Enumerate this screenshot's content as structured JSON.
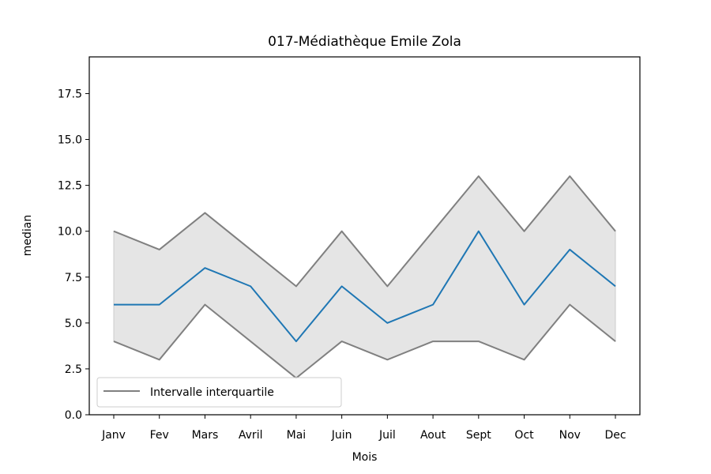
{
  "chart_data": {
    "type": "line",
    "title": "017-Médiathèque Emile Zola",
    "xlabel": "Mois",
    "ylabel": "median",
    "categories": [
      "Janv",
      "Fev",
      "Mars",
      "Avril",
      "Mai",
      "Juin",
      "Juil",
      "Aout",
      "Sept",
      "Oct",
      "Nov",
      "Dec"
    ],
    "ylim": [
      0,
      19.5
    ],
    "yticks": [
      "0.0",
      "2.5",
      "5.0",
      "7.5",
      "10.0",
      "12.5",
      "15.0",
      "17.5"
    ],
    "grid": false,
    "legend_position": "lower-left",
    "series": [
      {
        "values": [
          6,
          6,
          8,
          7,
          4,
          7,
          5,
          6,
          10,
          6,
          9,
          7
        ],
        "color": "#1f77b4"
      },
      {
        "name": "Intervalle interquartile",
        "role": "q3",
        "values": [
          10,
          9,
          11,
          9,
          7,
          10,
          7,
          10,
          13,
          10,
          13,
          10
        ],
        "color": "#808080"
      },
      {
        "role": "q1",
        "values": [
          4,
          3,
          6,
          4,
          2,
          4,
          3,
          4,
          4,
          3,
          6,
          4
        ],
        "color": "#808080"
      }
    ],
    "band_color": "#e5e5e5",
    "band_edge_color": "#cccccc"
  }
}
